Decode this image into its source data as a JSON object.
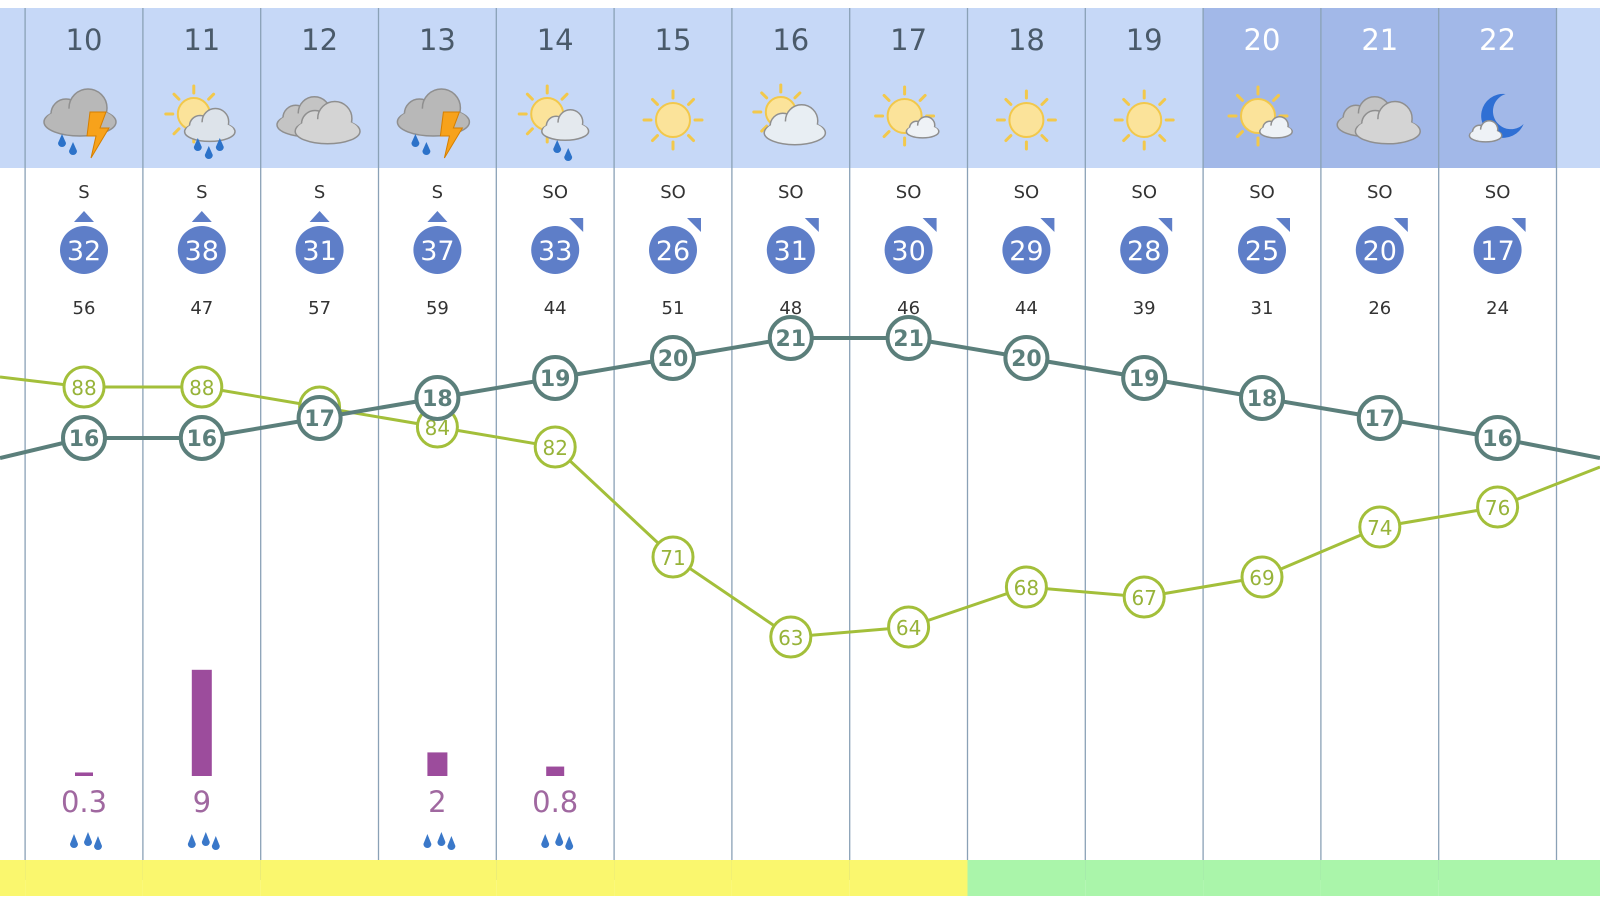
{
  "colors": {
    "header_day": "#c6d8f7",
    "header_night": "#a2b8e8",
    "gridline": "#8aa1b6",
    "wind_badge": "#5e7ec8",
    "temp_line": "#5b7f7b",
    "humidity_line": "#a3bf3a",
    "humidity_text": "#97b339",
    "precip_bar": "#9c4c9c",
    "precip_text": "#a068a0",
    "band_yellow": "#faf76e",
    "band_green": "#aaf5aa"
  },
  "chart_data": {
    "type": "line",
    "title": "",
    "xlabel": "",
    "ylabel": "",
    "hours": [
      "10",
      "11",
      "12",
      "13",
      "14",
      "15",
      "16",
      "17",
      "18",
      "19",
      "20",
      "21",
      "22"
    ],
    "night_hours": [
      "20",
      "21",
      "22"
    ],
    "icons": [
      "thunderstorm-rain-icon",
      "sun-rain-icon",
      "cloudy-icon",
      "thunderstorm-rain-icon",
      "sun-light-rain-icon",
      "sun-icon",
      "sun-cloud-icon",
      "sun-small-cloud-icon",
      "sun-icon",
      "sun-icon",
      "sun-small-cloud-icon",
      "cloudy-icon",
      "moon-cloud-icon"
    ],
    "wind_direction": [
      "S",
      "S",
      "S",
      "S",
      "SO",
      "SO",
      "SO",
      "SO",
      "SO",
      "SO",
      "SO",
      "SO",
      "SO"
    ],
    "wind_speed": [
      32,
      38,
      31,
      37,
      33,
      26,
      31,
      30,
      29,
      28,
      25,
      20,
      17
    ],
    "wind_gust": [
      "56",
      "47",
      "57",
      "59",
      "44",
      "51",
      "48",
      "46",
      "44",
      "39",
      "31",
      "26",
      "24"
    ],
    "series": [
      {
        "values": [
          16,
          16,
          17,
          18,
          19,
          20,
          21,
          21,
          20,
          19,
          18,
          17,
          16
        ],
        "edge_left": 15,
        "edge_right": 15
      },
      {
        "values": [
          88,
          88,
          86,
          84,
          82,
          71,
          63,
          64,
          68,
          67,
          69,
          74,
          76
        ],
        "edge_left": 89,
        "edge_right": 80
      }
    ],
    "precipitation": [
      {
        "index": 0,
        "value": 0.3,
        "label": "0.3"
      },
      {
        "index": 1,
        "value": 9,
        "label": "9"
      },
      {
        "index": 3,
        "value": 2,
        "label": "2"
      },
      {
        "index": 4,
        "value": 0.8,
        "label": "0.8"
      }
    ],
    "band": [
      "yellow",
      "yellow",
      "yellow",
      "yellow",
      "yellow",
      "yellow",
      "yellow",
      "yellow",
      "green",
      "green",
      "green",
      "green",
      "green"
    ]
  }
}
